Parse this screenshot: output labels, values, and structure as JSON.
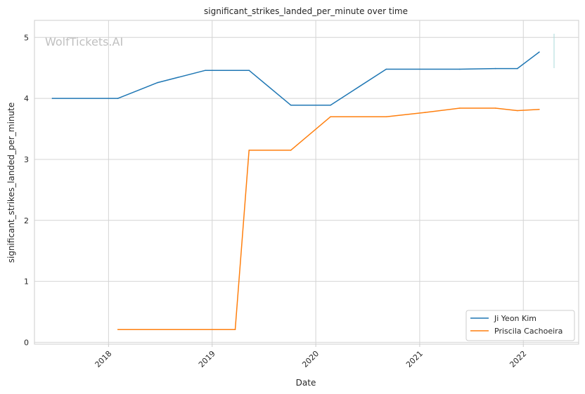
{
  "chart_data": {
    "type": "line",
    "title": "significant_strikes_landed_per_minute over time",
    "xlabel": "Date",
    "ylabel": "significant_strikes_landed_per_minute",
    "watermark": "WolfTickets.AI",
    "x_ticks": [
      "2018",
      "2019",
      "2020",
      "2021",
      "2022"
    ],
    "y_ticks": [
      "0",
      "1",
      "2",
      "3",
      "4",
      "5"
    ],
    "xlim": [
      "2017-04-15",
      "2022-07-15"
    ],
    "ylim": [
      -0.03,
      5.28
    ],
    "grid": true,
    "legend_position": "lower-right",
    "series": [
      {
        "name": "Ji Yeon Kim",
        "color": "#1f77b4",
        "points": [
          [
            "2017-06-17",
            4.0
          ],
          [
            "2018-02-03",
            4.0
          ],
          [
            "2018-06-23",
            4.26
          ],
          [
            "2018-12-08",
            4.46
          ],
          [
            "2019-05-11",
            4.46
          ],
          [
            "2019-10-05",
            3.89
          ],
          [
            "2020-02-22",
            3.89
          ],
          [
            "2020-09-05",
            4.48
          ],
          [
            "2021-05-22",
            4.48
          ],
          [
            "2021-09-25",
            4.49
          ],
          [
            "2021-12-11",
            4.49
          ],
          [
            "2022-02-26",
            4.76
          ]
        ]
      },
      {
        "name": "Priscila Cachoeira",
        "color": "#ff7f0e",
        "points": [
          [
            "2018-02-03",
            0.21
          ],
          [
            "2019-03-23",
            0.21
          ],
          [
            "2019-05-11",
            3.15
          ],
          [
            "2019-10-05",
            3.15
          ],
          [
            "2020-02-22",
            3.7
          ],
          [
            "2020-09-05",
            3.7
          ],
          [
            "2021-01-20",
            3.77
          ],
          [
            "2021-05-22",
            3.84
          ],
          [
            "2021-09-25",
            3.84
          ],
          [
            "2021-12-11",
            3.8
          ],
          [
            "2022-02-26",
            3.82
          ]
        ]
      }
    ]
  }
}
